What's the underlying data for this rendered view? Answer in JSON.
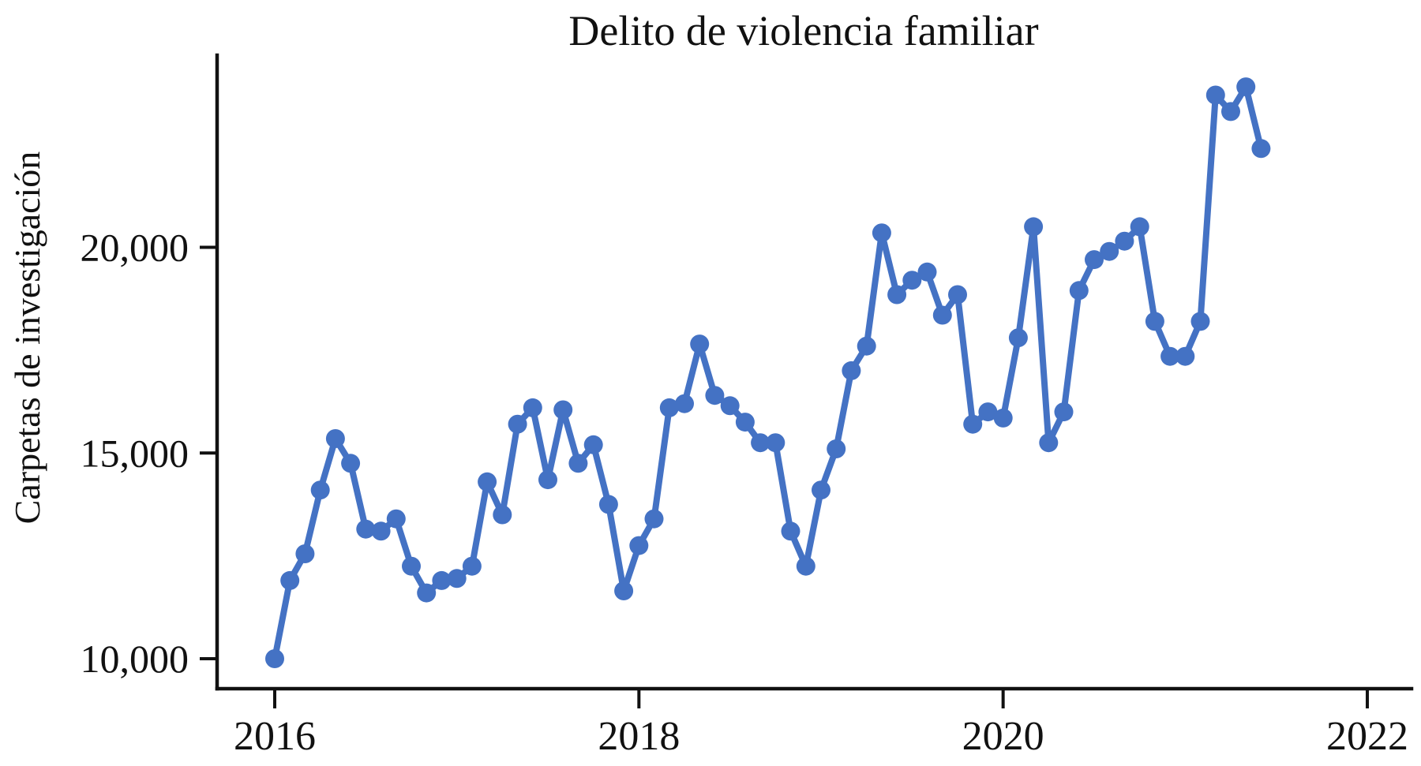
{
  "page": {
    "background_color": "#ffffff",
    "text_color": "#111111"
  },
  "chart_data": {
    "type": "line",
    "title": "Delito de violencia familiar",
    "xlabel": "",
    "ylabel": "Carpetas de investigación",
    "legend_position": "none",
    "grid": false,
    "line_color": "#4472C4",
    "marker": "circle",
    "x": [
      "2016-01",
      "2016-02",
      "2016-03",
      "2016-04",
      "2016-05",
      "2016-06",
      "2016-07",
      "2016-08",
      "2016-09",
      "2016-10",
      "2016-11",
      "2016-12",
      "2017-01",
      "2017-02",
      "2017-03",
      "2017-04",
      "2017-05",
      "2017-06",
      "2017-07",
      "2017-08",
      "2017-09",
      "2017-10",
      "2017-11",
      "2017-12",
      "2018-01",
      "2018-02",
      "2018-03",
      "2018-04",
      "2018-05",
      "2018-06",
      "2018-07",
      "2018-08",
      "2018-09",
      "2018-10",
      "2018-11",
      "2018-12",
      "2019-01",
      "2019-02",
      "2019-03",
      "2019-04",
      "2019-05",
      "2019-06",
      "2019-07",
      "2019-08",
      "2019-09",
      "2019-10",
      "2019-11",
      "2019-12",
      "2020-01",
      "2020-02",
      "2020-03",
      "2020-04",
      "2020-05",
      "2020-06",
      "2020-07",
      "2020-08",
      "2020-09",
      "2020-10",
      "2020-11",
      "2020-12",
      "2021-01",
      "2021-02",
      "2021-03",
      "2021-04",
      "2021-05",
      "2021-06"
    ],
    "values": [
      10000,
      11900,
      12550,
      14100,
      15350,
      14750,
      13150,
      13100,
      13400,
      12250,
      11600,
      11900,
      11950,
      12250,
      14300,
      13500,
      15700,
      16100,
      14350,
      16050,
      14750,
      15200,
      13750,
      11650,
      12750,
      13400,
      16100,
      16200,
      17650,
      16400,
      16150,
      15750,
      15250,
      15250,
      13100,
      12250,
      14100,
      15100,
      17000,
      17600,
      20350,
      18850,
      19200,
      19400,
      18350,
      18850,
      15700,
      16000,
      15850,
      17800,
      20500,
      15250,
      16000,
      18950,
      19700,
      19900,
      20150,
      20500,
      18200,
      17350,
      17350,
      18200,
      23700,
      23300,
      23900,
      22400
    ],
    "y_ticks": [
      {
        "label": "10,000",
        "value": 10000
      },
      {
        "label": "15,000",
        "value": 15000
      },
      {
        "label": "20,000",
        "value": 20000
      }
    ],
    "x_ticks": [
      {
        "label": "2016",
        "month_index": 0
      },
      {
        "label": "2018",
        "month_index": 24
      },
      {
        "label": "2020",
        "month_index": 48
      },
      {
        "label": "2022",
        "month_index": 72
      }
    ],
    "ylim": [
      9270,
      24670
    ]
  }
}
